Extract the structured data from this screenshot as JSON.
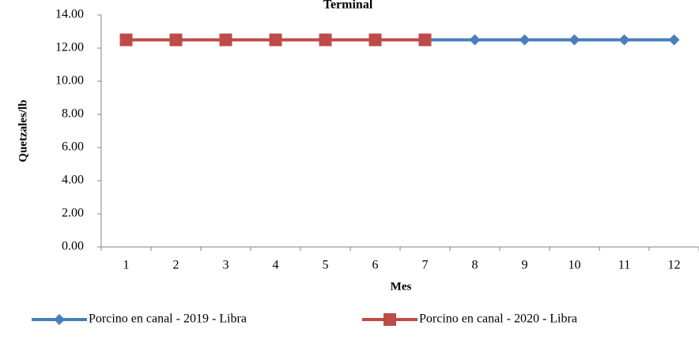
{
  "chart_data": {
    "type": "line",
    "title": "Terminal",
    "x_label": "Mes",
    "y_label": "Quetzales/lb",
    "categories": [
      "1",
      "2",
      "3",
      "4",
      "5",
      "6",
      "7",
      "8",
      "9",
      "10",
      "11",
      "12"
    ],
    "series": [
      {
        "name": "Porcino en canal - 2019 - Libra",
        "color": "#4a7ebb",
        "marker": "diamond",
        "values": [
          12.5,
          12.5,
          12.5,
          12.5,
          12.5,
          12.5,
          12.5,
          12.5,
          12.5,
          12.5,
          12.5,
          12.5
        ]
      },
      {
        "name": "Porcino en canal - 2020 - Libra",
        "color": "#be4b48",
        "marker": "square",
        "values": [
          12.5,
          12.5,
          12.5,
          12.5,
          12.5,
          12.5,
          12.5,
          null,
          null,
          null,
          null,
          null
        ]
      }
    ],
    "ylim": [
      0,
      14
    ],
    "yticks": [
      {
        "value": 0,
        "label": "0.00"
      },
      {
        "value": 2,
        "label": "2.00"
      },
      {
        "value": 4,
        "label": "4.00"
      },
      {
        "value": 6,
        "label": "6.00"
      },
      {
        "value": 8,
        "label": "8.00"
      },
      {
        "value": 10,
        "label": "10.00"
      },
      {
        "value": 12,
        "label": "12.00"
      },
      {
        "value": 14,
        "label": "14.00"
      }
    ],
    "grid": false,
    "legend": "bottom"
  }
}
